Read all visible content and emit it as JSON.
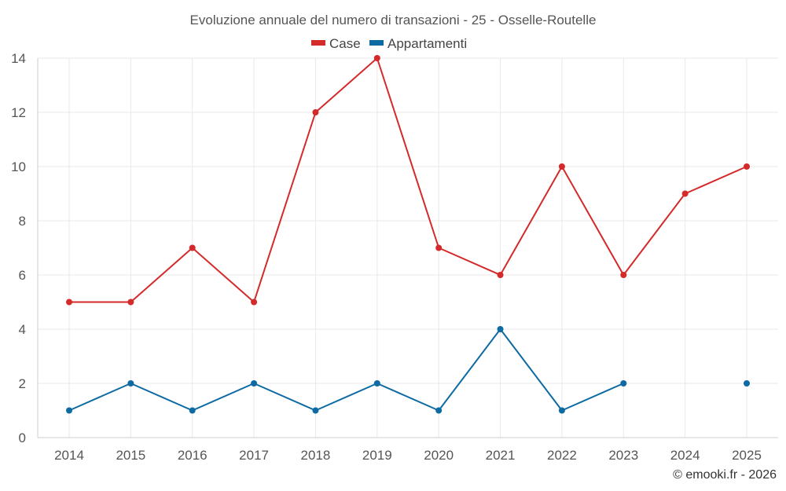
{
  "chart_data": {
    "type": "line",
    "title": "Evoluzione annuale del numero di transazioni - 25 - Osselle-Routelle",
    "categories": [
      "2014",
      "2015",
      "2016",
      "2017",
      "2018",
      "2019",
      "2020",
      "2021",
      "2022",
      "2023",
      "2024",
      "2025"
    ],
    "series": [
      {
        "name": "Case",
        "color": "#d42a2a",
        "values": [
          5,
          5,
          7,
          5,
          12,
          14,
          7,
          6,
          10,
          6,
          9,
          10
        ]
      },
      {
        "name": "Appartamenti",
        "color": "#0d6aa3",
        "values": [
          1,
          2,
          1,
          2,
          1,
          2,
          1,
          4,
          1,
          2,
          null,
          2
        ]
      }
    ],
    "ylim": [
      0,
      14
    ],
    "yticks": [
      0,
      2,
      4,
      6,
      8,
      10,
      12,
      14
    ],
    "grid": true,
    "legend_position": "top-center"
  },
  "credit": "© emooki.fr - 2026"
}
